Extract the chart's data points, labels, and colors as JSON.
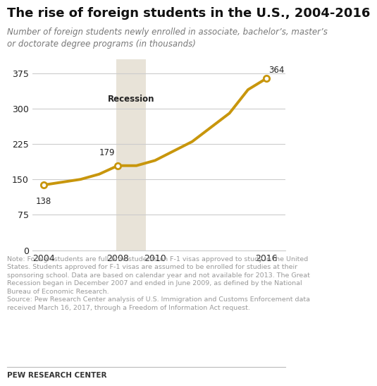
{
  "title": "The rise of foreign students in the U.S., 2004-2016",
  "subtitle": "Number of foreign students newly enrolled in associate, bachelor’s, master’s\nor doctorate degree programs (in thousands)",
  "years": [
    2004,
    2005,
    2006,
    2007,
    2008,
    2009,
    2010,
    2011,
    2012,
    2014,
    2015,
    2016
  ],
  "values": [
    138,
    144,
    150,
    161,
    179,
    179,
    190,
    210,
    230,
    290,
    340,
    364
  ],
  "line_color": "#C8960C",
  "recession_start": 2007.92,
  "recession_end": 2009.5,
  "recession_color": "#e8e3d8",
  "recession_label": "Recession",
  "yticks": [
    0,
    75,
    150,
    225,
    300,
    375
  ],
  "xticks": [
    2004,
    2008,
    2010,
    2016
  ],
  "ylim": [
    0,
    405
  ],
  "xlim": [
    2003.4,
    2017.0
  ],
  "note_text": "Note: Foreign students are full-time students on F-1 visas approved to study in the United\nStates. Students approved for F-1 visas are assumed to be enrolled for studies at their\nsponsoring school. Data are based on calendar year and not available for 2013. The Great\nRecession began in December 2007 and ended in June 2009, as defined by the National\nBureau of Economic Research.\nSource: Pew Research Center analysis of U.S. Immigration and Customs Enforcement data\nreceived March 16, 2017, through a Freedom of Information Act request.",
  "footer_text": "PEW RESEARCH CENTER",
  "bg_color": "#ffffff",
  "text_color": "#222222",
  "note_color": "#999999",
  "grid_color": "#cccccc",
  "title_fontsize": 13,
  "subtitle_fontsize": 8.5,
  "note_fontsize": 6.8,
  "footer_fontsize": 7.5
}
